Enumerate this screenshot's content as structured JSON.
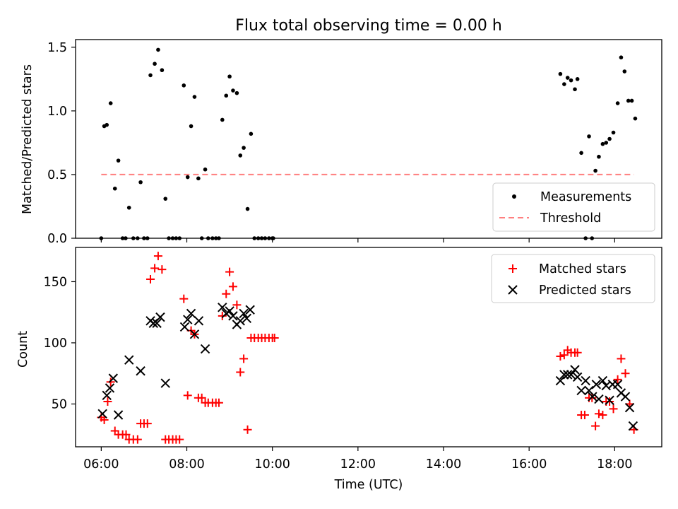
{
  "chart_data": {
    "title": "Flux total observing time = 0.00 h",
    "xlabel": "Time (UTC)",
    "x_tick_labels": [
      "06:00",
      "08:00",
      "10:00",
      "12:00",
      "14:00",
      "16:00",
      "18:00"
    ],
    "x_ticks_hours": [
      6,
      8,
      10,
      12,
      14,
      16,
      18
    ],
    "xlim_hours": [
      5.4,
      19.1
    ],
    "colors": {
      "measurement": "#000000",
      "threshold": "#ff7f7f",
      "matched": "#ff0000",
      "predicted": "#000000"
    },
    "panels": [
      {
        "type": "scatter",
        "ylabel": "Matched/Predicted stars",
        "ylim": [
          0,
          1.56
        ],
        "y_ticks": [
          0,
          0.5,
          1.0,
          1.5
        ],
        "y_tick_labels": [
          "0.0",
          "0.5",
          "1.0",
          "1.5"
        ],
        "legend": "lower-right",
        "legend_labels": [
          "Measurements",
          "Threshold"
        ],
        "threshold": {
          "value": 0.5,
          "x_range": [
            6.0,
            18.45
          ]
        },
        "measurements": {
          "x": [
            6.0,
            6.07,
            6.13,
            6.22,
            6.32,
            6.4,
            6.5,
            6.57,
            6.65,
            6.75,
            6.85,
            6.92,
            7.0,
            7.08,
            7.15,
            7.25,
            7.33,
            7.42,
            7.5,
            7.58,
            7.67,
            7.75,
            7.83,
            7.93,
            8.02,
            8.1,
            8.18,
            8.27,
            8.35,
            8.43,
            8.5,
            8.6,
            8.68,
            8.75,
            8.83,
            8.92,
            9.0,
            9.08,
            9.17,
            9.25,
            9.33,
            9.42,
            9.5,
            9.58,
            9.67,
            9.75,
            9.83,
            9.92,
            10.0,
            10.02,
            16.73,
            16.82,
            16.9,
            16.98,
            17.07,
            17.13,
            17.22,
            17.32,
            17.4,
            17.47,
            17.55,
            17.63,
            17.72,
            17.8,
            17.88,
            17.97,
            18.07,
            18.15,
            18.23,
            18.32,
            18.4,
            18.48
          ],
          "y": [
            0.0,
            0.88,
            0.89,
            1.06,
            0.39,
            0.61,
            0.0,
            0.0,
            0.24,
            0.0,
            0.0,
            0.44,
            0.0,
            0.0,
            1.28,
            1.37,
            1.48,
            1.32,
            0.31,
            0.0,
            0.0,
            0.0,
            0.0,
            1.2,
            0.48,
            0.88,
            1.11,
            0.47,
            0.0,
            0.54,
            0.0,
            0.0,
            0.0,
            0.0,
            0.93,
            1.12,
            1.27,
            1.16,
            1.14,
            0.65,
            0.71,
            0.23,
            0.82,
            0.0,
            0.0,
            0.0,
            0.0,
            0.0,
            0.0,
            0.0,
            1.29,
            1.21,
            1.26,
            1.24,
            1.17,
            1.25,
            0.67,
            0.0,
            0.8,
            0.0,
            0.53,
            0.64,
            0.74,
            0.75,
            0.78,
            0.83,
            1.06,
            1.42,
            1.31,
            1.08,
            1.08,
            0.94
          ]
        }
      },
      {
        "type": "scatter",
        "ylabel": "Count",
        "ylim": [
          15,
          178
        ],
        "y_ticks": [
          50,
          100,
          150
        ],
        "y_tick_labels": [
          "50",
          "100",
          "150"
        ],
        "legend": "top-right",
        "legend_labels": [
          "Matched stars",
          "Predicted stars"
        ],
        "matched": {
          "x": [
            6.0,
            6.07,
            6.15,
            6.22,
            6.32,
            6.4,
            6.5,
            6.58,
            6.65,
            6.75,
            6.85,
            6.92,
            7.0,
            7.08,
            7.15,
            7.25,
            7.33,
            7.42,
            7.5,
            7.58,
            7.67,
            7.75,
            7.83,
            7.93,
            8.02,
            8.1,
            8.18,
            8.27,
            8.35,
            8.43,
            8.5,
            8.6,
            8.68,
            8.75,
            8.83,
            8.92,
            9.0,
            9.08,
            9.17,
            9.25,
            9.33,
            9.42,
            9.5,
            9.58,
            9.67,
            9.75,
            9.83,
            9.92,
            10.0,
            10.05,
            16.73,
            16.82,
            16.9,
            16.98,
            17.07,
            17.13,
            17.22,
            17.3,
            17.4,
            17.47,
            17.55,
            17.63,
            17.72,
            17.8,
            17.88,
            17.97,
            18.07,
            18.15,
            18.25,
            18.35,
            18.45
          ],
          "y": [
            39,
            37,
            52,
            68,
            28,
            25,
            25,
            25,
            21,
            21,
            21,
            34,
            34,
            34,
            152,
            161,
            171,
            160,
            21,
            21,
            21,
            21,
            21,
            136,
            57,
            110,
            107,
            55,
            55,
            51,
            51,
            51,
            51,
            51,
            122,
            140,
            158,
            146,
            131,
            76,
            87,
            29,
            104,
            104,
            104,
            104,
            104,
            104,
            104,
            104,
            89,
            90,
            94,
            92,
            92,
            92,
            41,
            41,
            55,
            55,
            32,
            42,
            41,
            52,
            52,
            46,
            70,
            87,
            75,
            50,
            29
          ]
        },
        "predicted": {
          "x": [
            6.03,
            6.13,
            6.2,
            6.28,
            6.4,
            6.65,
            6.92,
            7.15,
            7.22,
            7.3,
            7.38,
            7.5,
            7.95,
            8.02,
            8.1,
            8.18,
            8.28,
            8.43,
            8.83,
            8.92,
            9.0,
            9.08,
            9.17,
            9.25,
            9.33,
            9.4,
            9.48,
            16.73,
            16.82,
            16.9,
            16.98,
            17.07,
            17.13,
            17.22,
            17.32,
            17.4,
            17.48,
            17.57,
            17.63,
            17.72,
            17.8,
            17.88,
            17.95,
            18.07,
            18.15,
            18.25,
            18.35,
            18.43
          ],
          "y": [
            42,
            57,
            63,
            71,
            41,
            86,
            77,
            118,
            116,
            116,
            121,
            67,
            113,
            119,
            124,
            107,
            118,
            95,
            129,
            124,
            126,
            122,
            115,
            118,
            124,
            120,
            127,
            69,
            74,
            74,
            74,
            78,
            72,
            61,
            69,
            61,
            56,
            66,
            54,
            69,
            65,
            53,
            66,
            66,
            59,
            56,
            47,
            32
          ]
        }
      }
    ]
  }
}
